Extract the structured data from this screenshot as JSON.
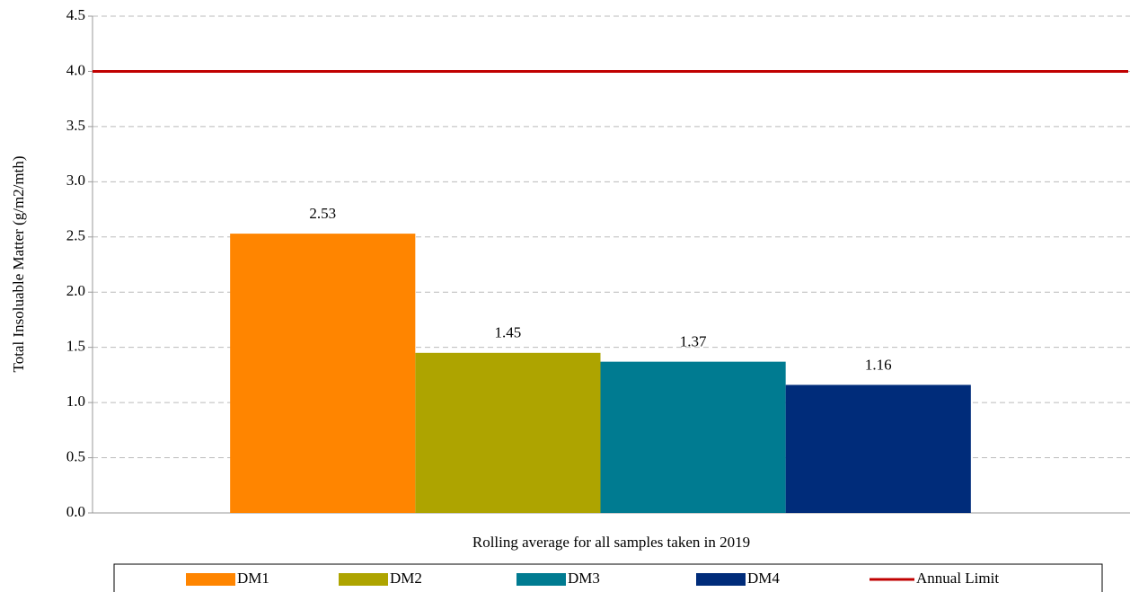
{
  "chart_data": {
    "type": "bar",
    "y_label": "Total Insoluable Matter (g/m2/mth)",
    "categories": [
      "Rolling average for all samples taken in 2019"
    ],
    "series": [
      {
        "name": "DM1",
        "color": "#ff8500",
        "values": [
          2.53
        ]
      },
      {
        "name": "DM2",
        "color": "#aea400",
        "values": [
          1.45
        ]
      },
      {
        "name": "DM3",
        "color": "#007b91",
        "values": [
          1.37
        ]
      },
      {
        "name": "DM4",
        "color": "#002c7a",
        "values": [
          1.16
        ]
      }
    ],
    "limit": {
      "name": "Annual Limit",
      "color": "#c00000",
      "value": 4.0
    },
    "ylim": [
      0,
      4.5
    ],
    "yticks": [
      {
        "value": 0,
        "label": "0.0"
      },
      0.5,
      {
        "value": 1,
        "label": "1.0"
      },
      1.5,
      {
        "value": 2,
        "label": "2.0"
      },
      2.5,
      {
        "value": 3,
        "label": "3.0"
      },
      3.5,
      {
        "value": 4,
        "label": "4.0"
      },
      4.5
    ],
    "grid": true,
    "legend": "bottom"
  }
}
